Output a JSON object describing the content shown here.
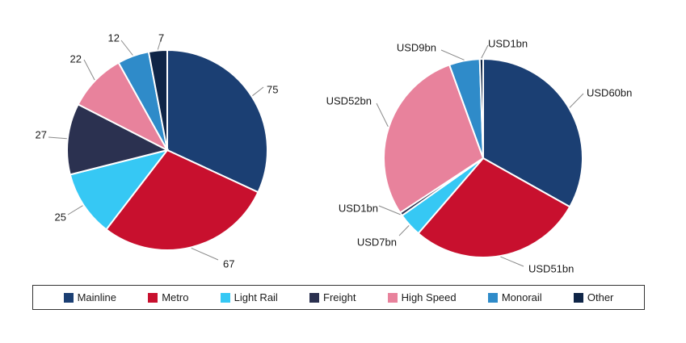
{
  "chart_data": [
    {
      "type": "pie",
      "title": "",
      "labels": [
        "Mainline",
        "Metro",
        "Light Rail",
        "Freight",
        "High Speed",
        "Monorail",
        "Other"
      ],
      "values": [
        75,
        67,
        25,
        27,
        22,
        12,
        7
      ],
      "data_labels": [
        "75",
        "67",
        "25",
        "27",
        "22",
        "12",
        "7"
      ]
    },
    {
      "type": "pie",
      "title": "",
      "labels": [
        "Mainline",
        "Metro",
        "Light Rail",
        "Freight",
        "High Speed",
        "Monorail",
        "Other"
      ],
      "values": [
        60,
        51,
        7,
        1,
        52,
        9,
        1
      ],
      "unit": "USD bn",
      "data_labels": [
        "USD60bn",
        "USD51bn",
        "USD7bn",
        "USD1bn",
        "USD52bn",
        "USD9bn",
        "USD1bn"
      ]
    }
  ],
  "legend": {
    "placement": "bottom",
    "items": [
      {
        "label": "Mainline",
        "color": "#1b3f73"
      },
      {
        "label": "Metro",
        "color": "#c8102e"
      },
      {
        "label": "Light Rail",
        "color": "#36c8f4"
      },
      {
        "label": "Freight",
        "color": "#2b3150"
      },
      {
        "label": "High Speed",
        "color": "#e8829c"
      },
      {
        "label": "Monorail",
        "color": "#2f8bc9"
      },
      {
        "label": "Other",
        "color": "#0f2547"
      }
    ]
  }
}
